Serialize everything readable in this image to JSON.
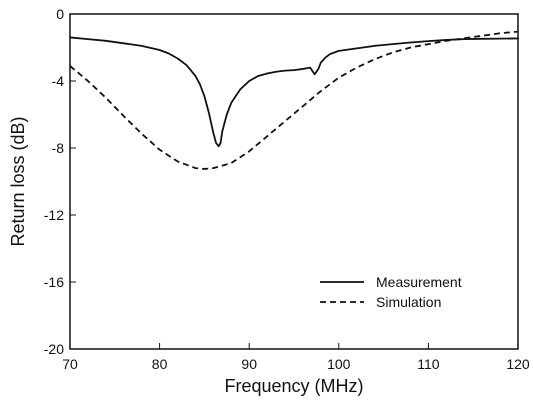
{
  "chart_data": {
    "type": "line",
    "title": "",
    "xlabel": "Frequency (MHz)",
    "ylabel": "Return loss (dB)",
    "xlim": [
      70,
      120
    ],
    "ylim": [
      -20,
      0
    ],
    "xticks": [
      70,
      80,
      90,
      100,
      110,
      120
    ],
    "yticks": [
      0,
      -4,
      -8,
      -12,
      -16,
      -20
    ],
    "xtick_labels": [
      "70",
      "80",
      "90",
      "100",
      "110",
      "120"
    ],
    "ytick_labels": [
      "0",
      "-4",
      "-8",
      "-12",
      "-16",
      "-20"
    ],
    "grid": false,
    "legend_position": "bottom-right",
    "series": [
      {
        "name": "Measurement",
        "style": "solid",
        "color": "#111111",
        "x": [
          70,
          72,
          74,
          76,
          78,
          80,
          81,
          82,
          83,
          84,
          84.5,
          85,
          85.5,
          86,
          86.3,
          86.6,
          86.8,
          87,
          87.5,
          88,
          89,
          90,
          91,
          92,
          93,
          94,
          95,
          96,
          96.8,
          97.3,
          97.7,
          98,
          98.5,
          99,
          100,
          102,
          104,
          106,
          108,
          110,
          112,
          114,
          116,
          118,
          120
        ],
        "y": [
          -1.4,
          -1.5,
          -1.6,
          -1.75,
          -1.9,
          -2.15,
          -2.35,
          -2.65,
          -3.05,
          -3.7,
          -4.2,
          -4.9,
          -5.9,
          -7.1,
          -7.7,
          -7.9,
          -7.7,
          -7.0,
          -6.0,
          -5.3,
          -4.5,
          -4.0,
          -3.7,
          -3.55,
          -3.45,
          -3.38,
          -3.35,
          -3.28,
          -3.2,
          -3.6,
          -3.3,
          -2.9,
          -2.6,
          -2.4,
          -2.2,
          -2.05,
          -1.9,
          -1.8,
          -1.7,
          -1.62,
          -1.55,
          -1.5,
          -1.48,
          -1.47,
          -1.46
        ]
      },
      {
        "name": "Simulation",
        "style": "dashed",
        "color": "#111111",
        "x": [
          70,
          72,
          74,
          76,
          78,
          80,
          82,
          84,
          85,
          86,
          88,
          90,
          92,
          94,
          96,
          98,
          100,
          102,
          104,
          106,
          108,
          110,
          112,
          114,
          116,
          118,
          120
        ],
        "y": [
          -3.1,
          -4.0,
          -5.0,
          -6.1,
          -7.15,
          -8.1,
          -8.8,
          -9.2,
          -9.25,
          -9.2,
          -8.9,
          -8.2,
          -7.3,
          -6.4,
          -5.5,
          -4.6,
          -3.8,
          -3.2,
          -2.7,
          -2.3,
          -2.0,
          -1.8,
          -1.6,
          -1.45,
          -1.3,
          -1.15,
          -1.05
        ]
      }
    ]
  }
}
